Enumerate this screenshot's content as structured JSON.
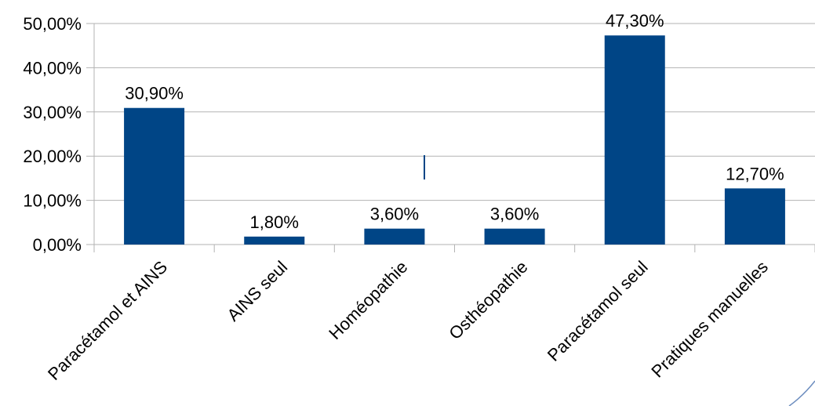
{
  "chart_data": {
    "type": "bar",
    "categories": [
      "Paracétamol et AINS",
      "AINS seul",
      "Homéopathie",
      "Osthéopathie",
      "Paracétamol seul",
      "Pratiques manuelles"
    ],
    "values": [
      30.9,
      1.8,
      3.6,
      3.6,
      47.3,
      12.7
    ],
    "data_labels": [
      "30,90%",
      "1,80%",
      "3,60%",
      "3,60%",
      "47,30%",
      "12,70%"
    ],
    "y_ticks": [
      0,
      10,
      20,
      30,
      40,
      50
    ],
    "y_tick_labels": [
      "0,00%",
      "10,00%",
      "20,00%",
      "30,00%",
      "40,00%",
      "50,00%"
    ],
    "ylim": [
      0,
      50
    ],
    "grid": true,
    "legend": "none",
    "title": "",
    "xlabel": "",
    "ylabel": "",
    "colors": {
      "bar": "#004586",
      "grid": "#b3b3b3",
      "axis": "#b3b3b3",
      "text": "#000000",
      "accent_line": "#004586",
      "corner_arc": "#6f8fc0"
    }
  }
}
